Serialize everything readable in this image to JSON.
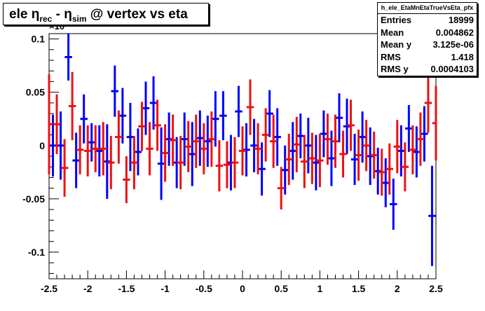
{
  "title": {
    "part1": "ele ",
    "eta": "η",
    "rec": "rec",
    "minus": " - ",
    "sim": "sim",
    "rest": " @ vertex vs eta"
  },
  "stats": {
    "name": "h_ele_EtaMnEtaTrueVsEta_pfx",
    "rows": [
      {
        "label": "Entries",
        "value": "18999"
      },
      {
        "label": "Mean",
        "value": "0.004862"
      },
      {
        "label": "Mean y",
        "value": "3.125e-06"
      },
      {
        "label": "RMS",
        "value": "1.418"
      },
      {
        "label": "RMS y",
        "value": "0.0004103"
      }
    ]
  },
  "chart_data": {
    "type": "scatter",
    "exponent_label": "×10",
    "xlim": [
      -2.5,
      2.5
    ],
    "ylim": [
      -0.125,
      0.105
    ],
    "x_ticks": [
      "-2.5",
      "-2",
      "-1.5",
      "-1",
      "-0.5",
      "0",
      "0.5",
      "1",
      "1.5",
      "2",
      "2.5"
    ],
    "y_ticks": [
      "0.1",
      "0.05",
      "0",
      "-0.05",
      "-0.1"
    ],
    "y_tick_values": [
      0.1,
      0.05,
      0,
      -0.05,
      -0.1
    ],
    "series": [
      {
        "color": "#0000ff",
        "points": [
          {
            "x": -2.45,
            "y": 0.0,
            "err": 0.029
          },
          {
            "x": -2.35,
            "y": 0.0,
            "err": 0.032
          },
          {
            "x": -2.25,
            "y": 0.083,
            "err": 0.022
          },
          {
            "x": -2.15,
            "y": -0.014,
            "err": 0.026
          },
          {
            "x": -2.05,
            "y": 0.025,
            "err": 0.023
          },
          {
            "x": -1.95,
            "y": 0.003,
            "err": 0.018
          },
          {
            "x": -1.85,
            "y": -0.005,
            "err": 0.024
          },
          {
            "x": -1.75,
            "y": -0.015,
            "err": 0.035
          },
          {
            "x": -1.65,
            "y": 0.051,
            "err": 0.024
          },
          {
            "x": -1.55,
            "y": 0.028,
            "err": 0.026
          },
          {
            "x": -1.45,
            "y": 0.008,
            "err": 0.032
          },
          {
            "x": -1.35,
            "y": -0.006,
            "err": 0.022
          },
          {
            "x": -1.25,
            "y": 0.035,
            "err": 0.025
          },
          {
            "x": -1.15,
            "y": 0.04,
            "err": 0.025
          },
          {
            "x": -1.05,
            "y": -0.017,
            "err": 0.034
          },
          {
            "x": -0.95,
            "y": 0.006,
            "err": 0.025
          },
          {
            "x": -0.85,
            "y": -0.016,
            "err": 0.024
          },
          {
            "x": -0.75,
            "y": 0.006,
            "err": 0.025
          },
          {
            "x": -0.65,
            "y": -0.008,
            "err": 0.03
          },
          {
            "x": -0.55,
            "y": 0.007,
            "err": 0.026
          },
          {
            "x": -0.45,
            "y": 0.004,
            "err": 0.024
          },
          {
            "x": -0.35,
            "y": 0.025,
            "err": 0.026
          },
          {
            "x": -0.25,
            "y": 0.028,
            "err": 0.023
          },
          {
            "x": -0.15,
            "y": -0.016,
            "err": 0.026
          },
          {
            "x": -0.05,
            "y": 0.032,
            "err": 0.024
          },
          {
            "x": 0.05,
            "y": -0.004,
            "err": 0.025
          },
          {
            "x": 0.15,
            "y": 0.0,
            "err": 0.025
          },
          {
            "x": 0.25,
            "y": -0.022,
            "err": 0.025
          },
          {
            "x": 0.35,
            "y": 0.03,
            "err": 0.022
          },
          {
            "x": 0.45,
            "y": 0.008,
            "err": 0.027
          },
          {
            "x": 0.55,
            "y": -0.023,
            "err": 0.023
          },
          {
            "x": 0.65,
            "y": -0.005,
            "err": 0.027
          },
          {
            "x": 0.75,
            "y": 0.009,
            "err": 0.021
          },
          {
            "x": 0.85,
            "y": 0.0,
            "err": 0.026
          },
          {
            "x": 0.95,
            "y": -0.016,
            "err": 0.026
          },
          {
            "x": 1.05,
            "y": 0.011,
            "err": 0.022
          },
          {
            "x": 1.15,
            "y": -0.012,
            "err": 0.026
          },
          {
            "x": 1.25,
            "y": 0.026,
            "err": 0.023
          },
          {
            "x": 1.35,
            "y": 0.018,
            "err": 0.026
          },
          {
            "x": 1.45,
            "y": -0.013,
            "err": 0.024
          },
          {
            "x": 1.55,
            "y": 0.008,
            "err": 0.024
          },
          {
            "x": 1.65,
            "y": -0.01,
            "err": 0.027
          },
          {
            "x": 1.75,
            "y": -0.024,
            "err": 0.022
          },
          {
            "x": 1.85,
            "y": -0.035,
            "err": 0.023
          },
          {
            "x": 1.95,
            "y": -0.055,
            "err": 0.024
          },
          {
            "x": 2.05,
            "y": -0.005,
            "err": 0.024
          },
          {
            "x": 2.15,
            "y": 0.016,
            "err": 0.022
          },
          {
            "x": 2.25,
            "y": -0.006,
            "err": 0.024
          },
          {
            "x": 2.35,
            "y": 0.011,
            "err": 0.026
          },
          {
            "x": 2.45,
            "y": -0.066,
            "err": 0.047
          }
        ]
      },
      {
        "color": "#ee1111",
        "points": [
          {
            "x": -2.5,
            "y": 0.02,
            "err": 0.047
          },
          {
            "x": -2.4,
            "y": 0.02,
            "err": 0.028
          },
          {
            "x": -2.3,
            "y": -0.021,
            "err": 0.027
          },
          {
            "x": -2.2,
            "y": 0.037,
            "err": 0.032
          },
          {
            "x": -2.1,
            "y": -0.004,
            "err": 0.023
          },
          {
            "x": -2.0,
            "y": -0.005,
            "err": 0.024
          },
          {
            "x": -1.9,
            "y": -0.003,
            "err": 0.022
          },
          {
            "x": -1.8,
            "y": -0.003,
            "err": 0.025
          },
          {
            "x": -1.7,
            "y": -0.016,
            "err": 0.025
          },
          {
            "x": -1.6,
            "y": 0.008,
            "err": 0.025
          },
          {
            "x": -1.5,
            "y": -0.032,
            "err": 0.022
          },
          {
            "x": -1.4,
            "y": -0.016,
            "err": 0.025
          },
          {
            "x": -1.3,
            "y": 0.018,
            "err": 0.023
          },
          {
            "x": -1.2,
            "y": -0.003,
            "err": 0.025
          },
          {
            "x": -1.1,
            "y": 0.019,
            "err": 0.024
          },
          {
            "x": -1.0,
            "y": -0.007,
            "err": 0.027
          },
          {
            "x": -0.9,
            "y": 0.005,
            "err": 0.024
          },
          {
            "x": -0.8,
            "y": -0.016,
            "err": 0.025
          },
          {
            "x": -0.7,
            "y": -0.001,
            "err": 0.024
          },
          {
            "x": -0.6,
            "y": 0.004,
            "err": 0.025
          },
          {
            "x": -0.5,
            "y": -0.003,
            "err": 0.024
          },
          {
            "x": -0.4,
            "y": 0.006,
            "err": 0.026
          },
          {
            "x": -0.3,
            "y": -0.019,
            "err": 0.024
          },
          {
            "x": -0.2,
            "y": -0.018,
            "err": 0.022
          },
          {
            "x": -0.1,
            "y": -0.016,
            "err": 0.024
          },
          {
            "x": 0.0,
            "y": -0.005,
            "err": 0.023
          },
          {
            "x": 0.1,
            "y": 0.036,
            "err": 0.026
          },
          {
            "x": 0.2,
            "y": -0.003,
            "err": 0.024
          },
          {
            "x": 0.3,
            "y": 0.01,
            "err": 0.025
          },
          {
            "x": 0.4,
            "y": 0.004,
            "err": 0.025
          },
          {
            "x": 0.5,
            "y": -0.04,
            "err": 0.02
          },
          {
            "x": 0.6,
            "y": -0.013,
            "err": 0.024
          },
          {
            "x": 0.7,
            "y": 0.001,
            "err": 0.026
          },
          {
            "x": 0.8,
            "y": -0.015,
            "err": 0.025
          },
          {
            "x": 0.9,
            "y": -0.012,
            "err": 0.024
          },
          {
            "x": 1.0,
            "y": -0.014,
            "err": 0.025
          },
          {
            "x": 1.1,
            "y": 0.006,
            "err": 0.024
          },
          {
            "x": 1.2,
            "y": 0.004,
            "err": 0.025
          },
          {
            "x": 1.3,
            "y": -0.008,
            "err": 0.022
          },
          {
            "x": 1.4,
            "y": 0.019,
            "err": 0.024
          },
          {
            "x": 1.5,
            "y": -0.009,
            "err": 0.024
          },
          {
            "x": 1.6,
            "y": 0.0,
            "err": 0.024
          },
          {
            "x": 1.7,
            "y": -0.009,
            "err": 0.022
          },
          {
            "x": 1.8,
            "y": -0.025,
            "err": 0.022
          },
          {
            "x": 1.9,
            "y": -0.022,
            "err": 0.024
          },
          {
            "x": 2.0,
            "y": -0.001,
            "err": 0.025
          },
          {
            "x": 2.1,
            "y": -0.02,
            "err": 0.023
          },
          {
            "x": 2.2,
            "y": -0.004,
            "err": 0.023
          },
          {
            "x": 2.3,
            "y": 0.006,
            "err": 0.025
          },
          {
            "x": 2.4,
            "y": 0.04,
            "err": 0.028
          },
          {
            "x": 2.5,
            "y": 0.021,
            "err": 0.035
          }
        ]
      }
    ]
  }
}
